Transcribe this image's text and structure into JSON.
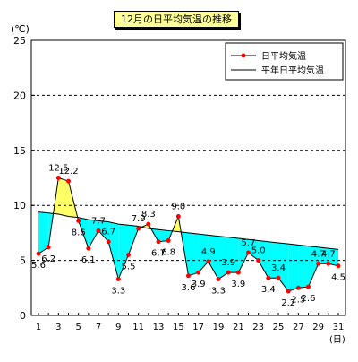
{
  "chart_data": {
    "type": "line",
    "title": "12月の日平均気温の推移",
    "y_unit": "(℃)",
    "x_unit": "(日)",
    "ylim": [
      0,
      25
    ],
    "y_ticks": [
      0,
      5,
      10,
      15,
      20,
      25
    ],
    "x_ticks": [
      1,
      3,
      5,
      7,
      9,
      11,
      13,
      15,
      17,
      19,
      21,
      23,
      25,
      27,
      29,
      31
    ],
    "x": [
      1,
      2,
      3,
      4,
      5,
      6,
      7,
      8,
      9,
      10,
      11,
      12,
      13,
      14,
      15,
      16,
      17,
      18,
      19,
      20,
      21,
      22,
      23,
      24,
      25,
      26,
      27,
      28,
      29,
      30,
      31
    ],
    "grid": "horizontal-dashed",
    "legend_position": "top-right",
    "series": [
      {
        "name": "日平均気温",
        "color": "#ff0000",
        "values": [
          5.6,
          6.2,
          12.5,
          12.2,
          8.6,
          6.1,
          7.7,
          6.7,
          3.3,
          5.5,
          7.9,
          8.3,
          6.7,
          6.8,
          9.0,
          3.6,
          3.9,
          4.9,
          3.3,
          3.9,
          3.9,
          5.7,
          5.0,
          3.4,
          3.4,
          2.2,
          2.5,
          2.6,
          4.7,
          4.7,
          4.5
        ]
      },
      {
        "name": "平年日平均気温",
        "color": "#000000",
        "values": [
          9.4,
          9.3,
          9.2,
          9.0,
          8.9,
          8.7,
          8.6,
          8.5,
          8.3,
          8.2,
          8.1,
          7.9,
          7.8,
          7.7,
          7.6,
          7.5,
          7.4,
          7.3,
          7.2,
          7.1,
          7.0,
          6.9,
          6.8,
          6.7,
          6.6,
          6.5,
          6.4,
          6.3,
          6.2,
          6.1,
          6.0
        ]
      }
    ],
    "fill_above_normal_color": "#ffff66",
    "fill_below_normal_color": "#00ffff"
  }
}
